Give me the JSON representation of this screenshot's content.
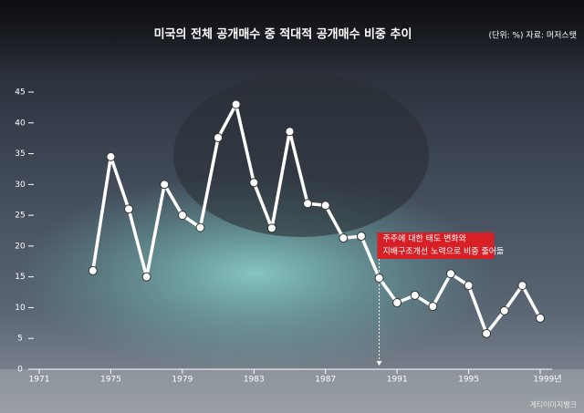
{
  "chart_data": {
    "type": "line",
    "title": "미국의 전체 공개매수 중 적대적 공개매수 비중 추이",
    "subtitle": "(단위: %) 자료: 머저스탯",
    "annotation": [
      "주주에 대한 태도 변화와",
      "지배구조개선 노력으로 비중 줄어듦"
    ],
    "annotation_x": 1990,
    "credit": "게티이미지뱅크",
    "x": [
      1974,
      1975,
      1976,
      1977,
      1978,
      1979,
      1980,
      1981,
      1982,
      1983,
      1984,
      1985,
      1986,
      1987,
      1988,
      1989,
      1990,
      1991,
      1992,
      1993,
      1994,
      1995,
      1996,
      1997,
      1998,
      1999
    ],
    "series": [
      {
        "color": "#ffffff",
        "values": [
          16,
          34.5,
          26,
          15,
          30,
          25,
          23,
          37.6,
          43,
          30.3,
          22.9,
          38.6,
          26.9,
          26.6,
          21.3,
          21.6,
          14.8,
          10.8,
          12,
          10.2,
          15.5,
          13.6,
          5.8,
          9.5,
          13.6,
          8.3
        ]
      }
    ],
    "xlim": [
      1971,
      1999
    ],
    "xticks": [
      1971,
      1975,
      1979,
      1983,
      1987,
      1991,
      1995,
      {
        "value": 1999,
        "label": "1999년"
      }
    ],
    "ylim": [
      0,
      45
    ],
    "yticks": [
      0,
      5,
      10,
      15,
      20,
      25,
      30,
      35,
      40,
      45
    ]
  }
}
